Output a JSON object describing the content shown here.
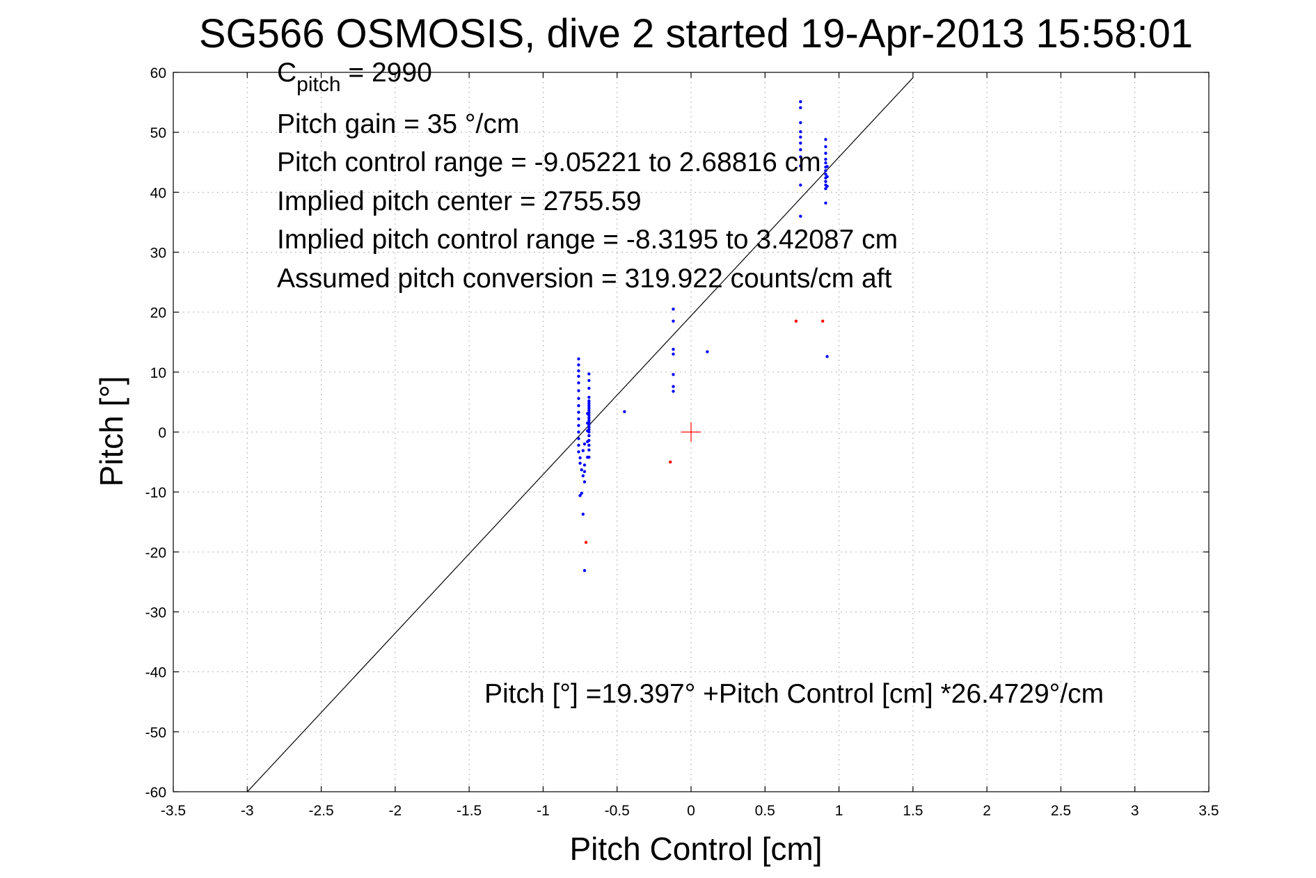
{
  "chart_data": {
    "type": "scatter",
    "title": "SG566 OSMOSIS, dive 2 started 19-Apr-2013 15:58:01",
    "xlabel": "Pitch Control [cm]",
    "ylabel": "Pitch [°]",
    "xlim": [
      -3.5,
      3.5
    ],
    "ylim": [
      -60,
      60
    ],
    "xticks": [
      -3.5,
      -3,
      -2.5,
      -2,
      -1.5,
      -1,
      -0.5,
      0,
      0.5,
      1,
      1.5,
      2,
      2.5,
      3,
      3.5
    ],
    "yticks": [
      -60,
      -50,
      -40,
      -30,
      -20,
      -10,
      0,
      10,
      20,
      30,
      40,
      50,
      60
    ],
    "grid": true,
    "colors": {
      "good": "#0000ff",
      "outlier": "#ff0000",
      "fit": "#000000",
      "center": "#ff0000"
    },
    "annotations": {
      "c_pitch_main": "C",
      "c_pitch_sub": "pitch",
      "c_pitch_value": " = 2990",
      "pitch_gain": "Pitch gain = 35 °/cm",
      "control_range": "Pitch control range = -9.05221 to 2.68816 cm",
      "implied_center": "Implied pitch center = 2755.59",
      "implied_range": "Implied pitch control range = -8.3195 to 3.42087 cm",
      "conversion": "Assumed pitch conversion = 319.922 counts/cm aft",
      "fit_equation": "Pitch [°] =19.397° +Pitch Control [cm] *26.4729°/cm"
    },
    "fit_line": {
      "intercept": 19.397,
      "slope": 26.4729,
      "x_range": [
        -3.0,
        1.5
      ]
    },
    "center_marker": {
      "x": 0,
      "y": 0
    },
    "series": [
      {
        "points": [
          [
            -0.76,
            12.2
          ],
          [
            -0.76,
            11.2
          ],
          [
            -0.76,
            10.2
          ],
          [
            -0.76,
            9.3
          ],
          [
            -0.76,
            8.2
          ],
          [
            -0.76,
            6.9
          ],
          [
            -0.76,
            5.6
          ],
          [
            -0.76,
            4.4
          ],
          [
            -0.76,
            3.3
          ],
          [
            -0.76,
            2.2
          ],
          [
            -0.76,
            1.1
          ],
          [
            -0.76,
            0.0
          ],
          [
            -0.76,
            -1.1
          ],
          [
            -0.76,
            -2.2
          ],
          [
            -0.76,
            -3.3
          ],
          [
            -0.75,
            -4.3
          ],
          [
            -0.75,
            -5.2
          ],
          [
            -0.74,
            -6.3
          ],
          [
            -0.74,
            -10.2
          ],
          [
            -0.75,
            -10.6
          ],
          [
            -0.73,
            -13.7
          ],
          [
            -0.72,
            -23.1
          ],
          [
            -0.72,
            -6.6
          ],
          [
            -0.73,
            -7.3
          ],
          [
            -0.72,
            -8.3
          ],
          [
            -0.72,
            -5.5
          ],
          [
            -0.73,
            -3.1
          ],
          [
            -0.72,
            -2.0
          ],
          [
            -0.69,
            9.7
          ],
          [
            -0.69,
            8.6
          ],
          [
            -0.69,
            7.3
          ],
          [
            -0.69,
            5.8
          ],
          [
            -0.69,
            5.2
          ],
          [
            -0.69,
            4.8
          ],
          [
            -0.69,
            4.4
          ],
          [
            -0.69,
            4.0
          ],
          [
            -0.69,
            3.6
          ],
          [
            -0.69,
            3.2
          ],
          [
            -0.69,
            2.8
          ],
          [
            -0.69,
            2.4
          ],
          [
            -0.69,
            2.0
          ],
          [
            -0.69,
            1.6
          ],
          [
            -0.69,
            1.2
          ],
          [
            -0.69,
            0.8
          ],
          [
            -0.69,
            0.4
          ],
          [
            -0.69,
            0.0
          ],
          [
            -0.69,
            -0.6
          ],
          [
            -0.69,
            -1.4
          ],
          [
            -0.69,
            -2.2
          ],
          [
            -0.69,
            -3.0
          ],
          [
            -0.69,
            -4.2
          ],
          [
            -0.7,
            3.1
          ],
          [
            -0.7,
            1.5
          ],
          [
            -0.7,
            0.2
          ],
          [
            -0.7,
            -1.6
          ],
          [
            -0.7,
            -4.2
          ],
          [
            -0.45,
            3.4
          ],
          [
            -0.12,
            20.5
          ],
          [
            -0.12,
            18.5
          ],
          [
            -0.12,
            13.8
          ],
          [
            -0.12,
            13.0
          ],
          [
            -0.12,
            9.6
          ],
          [
            -0.12,
            7.6
          ],
          [
            -0.12,
            6.8
          ],
          [
            0.11,
            13.4
          ],
          [
            0.74,
            55.1
          ],
          [
            0.74,
            54.1
          ],
          [
            0.74,
            51.6
          ],
          [
            0.74,
            50.1
          ],
          [
            0.74,
            49.2
          ],
          [
            0.74,
            48.2
          ],
          [
            0.74,
            47.1
          ],
          [
            0.74,
            45.9
          ],
          [
            0.74,
            44.4
          ],
          [
            0.74,
            41.2
          ],
          [
            0.74,
            36.0
          ],
          [
            0.91,
            48.8
          ],
          [
            0.91,
            47.6
          ],
          [
            0.91,
            46.5
          ],
          [
            0.91,
            45.5
          ],
          [
            0.91,
            44.9
          ],
          [
            0.91,
            44.2
          ],
          [
            0.91,
            43.6
          ],
          [
            0.91,
            43.0
          ],
          [
            0.91,
            42.4
          ],
          [
            0.91,
            41.8
          ],
          [
            0.91,
            41.2
          ],
          [
            0.91,
            40.6
          ],
          [
            0.91,
            38.2
          ],
          [
            0.92,
            44.3
          ],
          [
            0.92,
            42.6
          ],
          [
            0.92,
            41.0
          ],
          [
            0.92,
            12.6
          ]
        ]
      },
      {
        "points": [
          [
            -0.71,
            -18.4
          ],
          [
            -0.14,
            -5.0
          ],
          [
            0.71,
            18.5
          ],
          [
            0.89,
            18.5
          ]
        ]
      }
    ]
  }
}
